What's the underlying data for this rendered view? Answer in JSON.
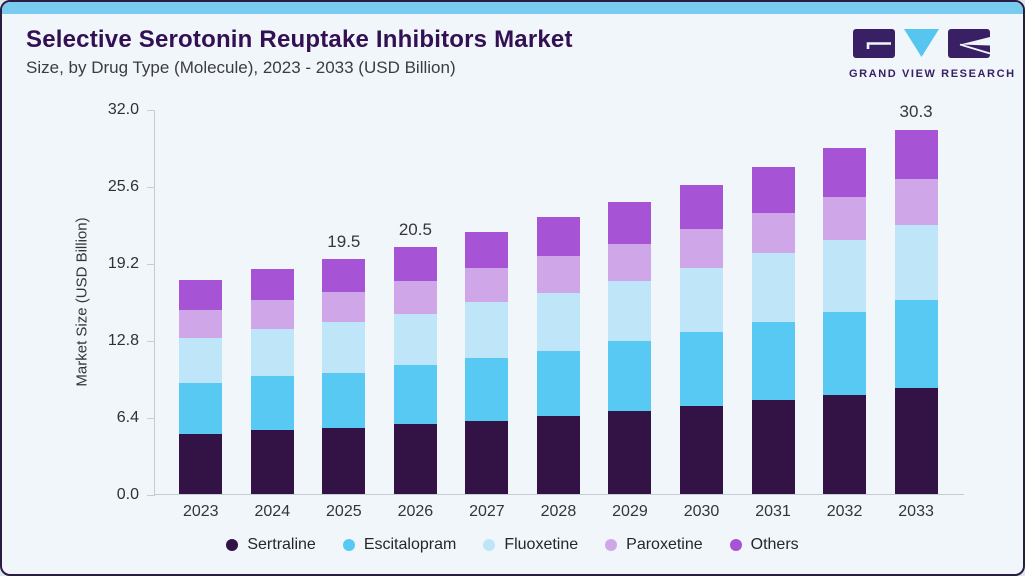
{
  "header": {
    "title": "Selective Serotonin Reuptake Inhibitors Market",
    "subtitle": "Size, by Drug Type (Molecule), 2023 - 2033 (USD Billion)",
    "logo_text": "GRAND VIEW RESEARCH"
  },
  "colors": {
    "accent_strip": "#79CBF0",
    "card_background": "#F0F6FA",
    "card_border": "#2b1c44",
    "title_text": "#331053",
    "axis": "#C6CCD4",
    "logo_purple": "#392064",
    "logo_blue": "#56C5F0"
  },
  "chart_data": {
    "type": "bar",
    "stacked": true,
    "title": "Selective Serotonin Reuptake Inhibitors Market Size, by Drug Type (Molecule), 2023 - 2033 (USD Billion)",
    "categories": [
      "2023",
      "2024",
      "2025",
      "2026",
      "2027",
      "2028",
      "2029",
      "2030",
      "2031",
      "2032",
      "2033"
    ],
    "series": [
      {
        "name": "Sertraline",
        "color": "#331246",
        "values": [
          5.0,
          5.3,
          5.5,
          5.8,
          6.1,
          6.5,
          6.9,
          7.3,
          7.8,
          8.2,
          8.8
        ]
      },
      {
        "name": "Escitalopram",
        "color": "#58C9F3",
        "values": [
          4.2,
          4.5,
          4.6,
          4.9,
          5.2,
          5.4,
          5.8,
          6.2,
          6.5,
          6.9,
          7.3
        ]
      },
      {
        "name": "Fluoxetine",
        "color": "#BEE6F8",
        "values": [
          3.8,
          3.9,
          4.2,
          4.3,
          4.7,
          4.8,
          5.0,
          5.3,
          5.7,
          6.0,
          6.3
        ]
      },
      {
        "name": "Paroxetine",
        "color": "#CFA7E9",
        "values": [
          2.3,
          2.4,
          2.5,
          2.7,
          2.8,
          3.1,
          3.1,
          3.2,
          3.4,
          3.6,
          3.8
        ]
      },
      {
        "name": "Others",
        "color": "#A653D6",
        "values": [
          2.5,
          2.6,
          2.7,
          2.8,
          3.0,
          3.2,
          3.5,
          3.7,
          3.8,
          4.1,
          4.1
        ]
      }
    ],
    "totals": [
      17.8,
      18.7,
      19.5,
      20.5,
      21.8,
      23.0,
      24.3,
      25.7,
      27.2,
      28.8,
      30.3
    ],
    "total_labels": [
      "",
      "",
      "19.5",
      "20.5",
      "",
      "",
      "",
      "",
      "",
      "",
      "30.3"
    ],
    "xlabel": "",
    "ylabel": "Market Size (USD Billion)",
    "yticks": [
      "0.0",
      "6.4",
      "12.8",
      "19.2",
      "25.6",
      "32.0"
    ],
    "ylim": [
      0,
      32
    ],
    "grid": false,
    "legend_position": "bottom"
  }
}
